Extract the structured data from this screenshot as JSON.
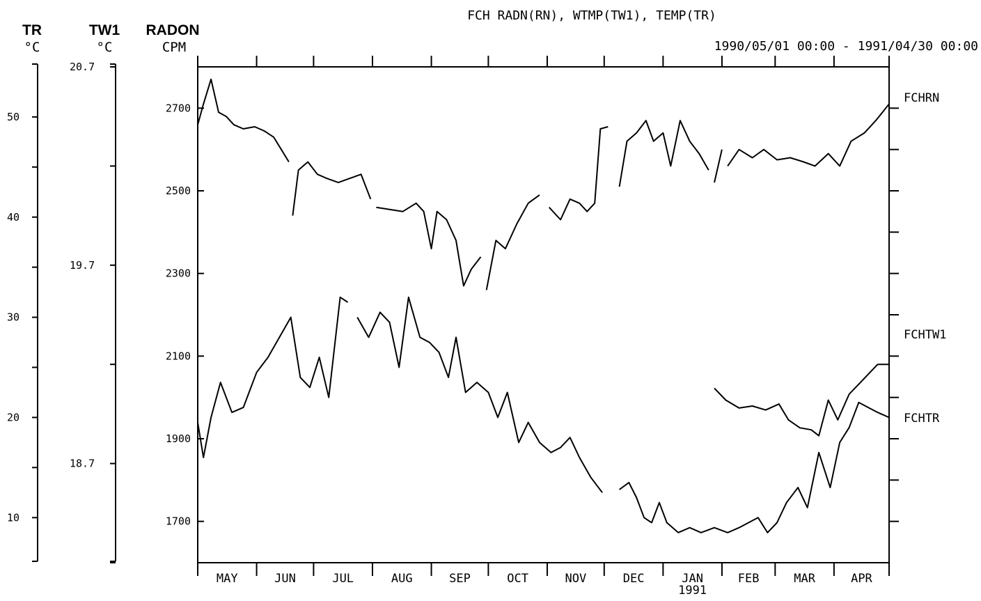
{
  "chart_data": {
    "type": "line",
    "title": "FCH  RADN(RN), WTMP(TW1), TEMP(TR)",
    "period": "1990/05/01 00:00 - 1991/04/30 00:00",
    "axes": {
      "tr": {
        "label": "TR",
        "unit": "°C",
        "ticks": [
          "50",
          "40",
          "30",
          "20",
          "10"
        ],
        "ylim": [
          5.5,
          55
        ]
      },
      "tw1": {
        "label": "TW1",
        "unit": "°C",
        "ticks": [
          "20.7",
          "19.7",
          "18.7"
        ],
        "ylim": [
          18.2,
          20.7
        ]
      },
      "radon": {
        "label": "RADON",
        "unit": "CPM",
        "ticks": [
          "2700",
          "2500",
          "2300",
          "2100",
          "1900",
          "1700"
        ],
        "ylim": [
          1600,
          2800
        ]
      }
    },
    "x_tick_labels": [
      "MAY",
      "JUN",
      "JUL",
      "AUG",
      "SEP",
      "OCT",
      "NOV",
      "DEC",
      "JAN",
      "FEB",
      "MAR",
      "APR"
    ],
    "x_year_label": "1991",
    "x_start": "1990-05-01",
    "x_end": "1991-04-30",
    "series": [
      {
        "name": "FCHRN",
        "axis": "radon",
        "segments": [
          [
            [
              "1990-05-01",
              2660
            ],
            [
              "1990-05-04",
              2710
            ],
            [
              "1990-05-08",
              2770
            ],
            [
              "1990-05-12",
              2690
            ],
            [
              "1990-05-16",
              2680
            ],
            [
              "1990-05-20",
              2660
            ],
            [
              "1990-05-25",
              2650
            ],
            [
              "1990-05-31",
              2655
            ],
            [
              "1990-06-05",
              2645
            ],
            [
              "1990-06-10",
              2630
            ],
            [
              "1990-06-14",
              2600
            ],
            [
              "1990-06-18",
              2570
            ]
          ],
          [
            [
              "1990-06-20",
              2440
            ],
            [
              "1990-06-23",
              2550
            ],
            [
              "1990-06-28",
              2570
            ],
            [
              "1990-07-03",
              2540
            ],
            [
              "1990-07-08",
              2530
            ],
            [
              "1990-07-14",
              2520
            ],
            [
              "1990-07-20",
              2530
            ],
            [
              "1990-07-26",
              2540
            ],
            [
              "1990-07-31",
              2480
            ]
          ],
          [
            [
              "1990-08-03",
              2460
            ],
            [
              "1990-08-10",
              2455
            ],
            [
              "1990-08-17",
              2450
            ],
            [
              "1990-08-24",
              2470
            ],
            [
              "1990-08-28",
              2450
            ],
            [
              "1990-09-01",
              2360
            ],
            [
              "1990-09-04",
              2450
            ],
            [
              "1990-09-09",
              2430
            ],
            [
              "1990-09-14",
              2380
            ],
            [
              "1990-09-18",
              2270
            ],
            [
              "1990-09-22",
              2310
            ],
            [
              "1990-09-27",
              2340
            ]
          ],
          [
            [
              "1990-09-30",
              2260
            ],
            [
              "1990-10-05",
              2380
            ],
            [
              "1990-10-10",
              2360
            ],
            [
              "1990-10-16",
              2420
            ],
            [
              "1990-10-22",
              2470
            ],
            [
              "1990-10-28",
              2490
            ]
          ],
          [
            [
              "1990-11-02",
              2460
            ],
            [
              "1990-11-08",
              2430
            ],
            [
              "1990-11-13",
              2480
            ],
            [
              "1990-11-18",
              2470
            ],
            [
              "1990-11-22",
              2450
            ],
            [
              "1990-11-26",
              2470
            ],
            [
              "1990-11-29",
              2650
            ],
            [
              "1990-12-03",
              2655
            ]
          ],
          [
            [
              "1990-12-09",
              2510
            ],
            [
              "1990-12-13",
              2620
            ],
            [
              "1990-12-18",
              2640
            ],
            [
              "1990-12-23",
              2670
            ],
            [
              "1990-12-27",
              2620
            ],
            [
              "1991-01-01",
              2640
            ],
            [
              "1991-01-05",
              2560
            ],
            [
              "1991-01-10",
              2670
            ],
            [
              "1991-01-15",
              2620
            ],
            [
              "1991-01-20",
              2590
            ],
            [
              "1991-01-25",
              2550
            ]
          ],
          [
            [
              "1991-01-28",
              2520
            ],
            [
              "1991-02-01",
              2600
            ]
          ],
          [
            [
              "1991-02-04",
              2560
            ],
            [
              "1991-02-10",
              2600
            ],
            [
              "1991-02-17",
              2580
            ],
            [
              "1991-02-23",
              2600
            ],
            [
              "1991-03-02",
              2575
            ],
            [
              "1991-03-09",
              2580
            ],
            [
              "1991-03-16",
              2570
            ],
            [
              "1991-03-22",
              2560
            ],
            [
              "1991-03-29",
              2590
            ],
            [
              "1991-04-04",
              2560
            ],
            [
              "1991-04-10",
              2620
            ],
            [
              "1991-04-17",
              2640
            ],
            [
              "1991-04-23",
              2670
            ],
            [
              "1991-04-30",
              2710
            ]
          ]
        ]
      },
      {
        "name": "FCHTW1",
        "axis": "tw1",
        "segments": [
          [
            [
              "1991-01-28",
              19.08
            ],
            [
              "1991-02-03",
              19.02
            ],
            [
              "1991-02-10",
              18.98
            ],
            [
              "1991-02-17",
              18.99
            ],
            [
              "1991-02-24",
              18.97
            ],
            [
              "1991-03-03",
              19.0
            ],
            [
              "1991-03-08",
              18.92
            ],
            [
              "1991-03-14",
              18.88
            ],
            [
              "1991-03-20",
              18.87
            ],
            [
              "1991-03-24",
              18.84
            ],
            [
              "1991-03-29",
              19.02
            ],
            [
              "1991-04-03",
              18.92
            ],
            [
              "1991-04-09",
              19.05
            ],
            [
              "1991-04-14",
              19.1
            ],
            [
              "1991-04-19",
              19.15
            ],
            [
              "1991-04-24",
              19.2
            ],
            [
              "1991-04-30",
              19.2
            ]
          ]
        ]
      },
      {
        "name": "FCHTR",
        "axis": "tr",
        "segments": [
          [
            [
              "1990-05-01",
              19.5
            ],
            [
              "1990-05-04",
              16.0
            ],
            [
              "1990-05-08",
              20.0
            ],
            [
              "1990-05-13",
              23.5
            ],
            [
              "1990-05-19",
              20.5
            ],
            [
              "1990-05-25",
              21.0
            ],
            [
              "1990-06-01",
              24.5
            ],
            [
              "1990-06-07",
              26.0
            ],
            [
              "1990-06-13",
              28.0
            ],
            [
              "1990-06-19",
              30.0
            ],
            [
              "1990-06-24",
              24.0
            ],
            [
              "1990-06-29",
              23.0
            ],
            [
              "1990-07-04",
              26.0
            ],
            [
              "1990-07-09",
              22.0
            ],
            [
              "1990-07-15",
              32.0
            ],
            [
              "1990-07-19",
              31.5
            ]
          ],
          [
            [
              "1990-07-24",
              30.0
            ],
            [
              "1990-07-30",
              28.0
            ],
            [
              "1990-08-05",
              30.5
            ],
            [
              "1990-08-10",
              29.5
            ],
            [
              "1990-08-15",
              25.0
            ],
            [
              "1990-08-20",
              32.0
            ],
            [
              "1990-08-26",
              28.0
            ],
            [
              "1990-08-31",
              27.5
            ],
            [
              "1990-09-05",
              26.5
            ],
            [
              "1990-09-10",
              24.0
            ],
            [
              "1990-09-14",
              28.0
            ],
            [
              "1990-09-19",
              22.5
            ],
            [
              "1990-09-25",
              23.5
            ],
            [
              "1990-10-01",
              22.5
            ],
            [
              "1990-10-06",
              20.0
            ],
            [
              "1990-10-11",
              22.5
            ],
            [
              "1990-10-17",
              17.5
            ],
            [
              "1990-10-22",
              19.5
            ],
            [
              "1990-10-28",
              17.5
            ],
            [
              "1990-11-03",
              16.5
            ],
            [
              "1990-11-08",
              17.0
            ],
            [
              "1990-11-13",
              18.0
            ],
            [
              "1990-11-18",
              16.0
            ],
            [
              "1990-11-24",
              14.0
            ],
            [
              "1990-11-30",
              12.5
            ]
          ],
          [
            [
              "1990-12-09",
              12.8
            ],
            [
              "1990-12-14",
              13.5
            ],
            [
              "1990-12-18",
              12.0
            ],
            [
              "1990-12-22",
              10.0
            ],
            [
              "1990-12-26",
              9.5
            ],
            [
              "1990-12-30",
              11.5
            ],
            [
              "1991-01-03",
              9.5
            ],
            [
              "1991-01-09",
              8.5
            ],
            [
              "1991-01-15",
              9.0
            ],
            [
              "1991-01-21",
              8.5
            ],
            [
              "1991-01-28",
              9.0
            ],
            [
              "1991-02-04",
              8.5
            ],
            [
              "1991-02-10",
              9.0
            ],
            [
              "1991-02-15",
              9.5
            ],
            [
              "1991-02-20",
              10.0
            ],
            [
              "1991-02-25",
              8.5
            ],
            [
              "1991-03-02",
              9.5
            ],
            [
              "1991-03-07",
              11.5
            ],
            [
              "1991-03-13",
              13.0
            ],
            [
              "1991-03-18",
              11.0
            ],
            [
              "1991-03-24",
              16.5
            ],
            [
              "1991-03-30",
              13.0
            ],
            [
              "1991-04-04",
              17.5
            ],
            [
              "1991-04-09",
              19.0
            ],
            [
              "1991-04-14",
              21.5
            ],
            [
              "1991-04-19",
              21.0
            ],
            [
              "1991-04-24",
              20.5
            ],
            [
              "1991-04-30",
              20.0
            ]
          ]
        ]
      }
    ],
    "grid": false,
    "colors": {
      "line": "#000000",
      "background": "#ffffff"
    }
  }
}
